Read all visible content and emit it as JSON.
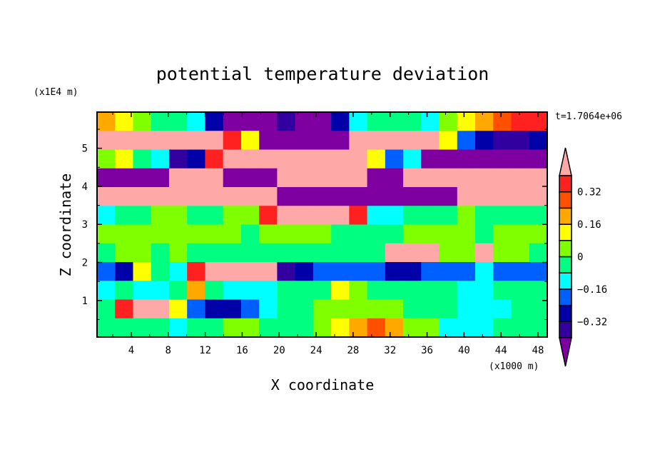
{
  "chart_data": {
    "type": "heatmap",
    "title": "potential temperature deviation",
    "xlabel": "X coordinate",
    "ylabel": "Z coordinate",
    "x_units": "(x1000 m)",
    "y_units": "(x1E4 m)",
    "time_label": "t=1.7064e+06",
    "xlim": [
      0.3,
      49.0
    ],
    "ylim": [
      0.04,
      5.95
    ],
    "x_ticks": [
      4,
      8,
      12,
      16,
      20,
      24,
      28,
      32,
      36,
      40,
      44,
      48
    ],
    "y_ticks": [
      1,
      2,
      3,
      4,
      5
    ],
    "contour_levels": [
      -0.4,
      -0.32,
      -0.24,
      -0.16,
      -0.08,
      0,
      0.08,
      0.16,
      0.24,
      0.32,
      0.4
    ],
    "colorbar_labels": [
      {
        "value": 0.32,
        "text": "0.32"
      },
      {
        "value": 0.16,
        "text": "0.16"
      },
      {
        "value": 0,
        "text": "0"
      },
      {
        "value": -0.16,
        "text": "−0.16"
      },
      {
        "value": -0.32,
        "text": "−0.32"
      }
    ],
    "colors": {
      "under": "#7e00a0",
      "bands": [
        "#3300a0",
        "#0000a8",
        "#0060ff",
        "#00ffff",
        "#00ff80",
        "#80ff00",
        "#ffff00",
        "#ffa800",
        "#ff5000",
        "#ff2020"
      ],
      "over": "#ffa8a8"
    },
    "grid_note_rows_top_to_bottom": "coarse 25 x 12 approximation of the field",
    "values": [
      [
        0.2,
        0.12,
        0.04,
        -0.04,
        -0.04,
        -0.12,
        -0.28,
        -0.5,
        -0.5,
        -0.5,
        -0.36,
        -0.5,
        -0.5,
        -0.28,
        -0.12,
        -0.04,
        -0.04,
        -0.04,
        -0.12,
        0.04,
        0.12,
        0.2,
        0.28,
        0.36,
        0.36
      ],
      [
        0.5,
        0.5,
        0.5,
        0.5,
        0.5,
        0.5,
        0.5,
        0.36,
        0.12,
        -0.5,
        -0.5,
        -0.5,
        -0.5,
        -0.5,
        0.5,
        0.5,
        0.5,
        0.5,
        0.5,
        0.12,
        -0.2,
        -0.28,
        -0.36,
        -0.36,
        -0.28
      ],
      [
        0.04,
        0.12,
        -0.04,
        -0.12,
        -0.36,
        -0.28,
        0.36,
        0.5,
        0.5,
        0.5,
        0.5,
        0.5,
        0.5,
        0.5,
        0.5,
        0.12,
        -0.2,
        -0.12,
        -0.5,
        -0.5,
        -0.5,
        -0.5,
        -0.5,
        -0.5,
        -0.5
      ],
      [
        -0.5,
        -0.5,
        -0.5,
        -0.5,
        0.5,
        0.5,
        0.5,
        -0.5,
        -0.5,
        -0.5,
        0.5,
        0.5,
        0.5,
        0.5,
        0.5,
        -0.5,
        -0.5,
        0.5,
        0.5,
        0.5,
        0.5,
        0.5,
        0.5,
        0.5,
        0.5
      ],
      [
        0.5,
        0.5,
        0.5,
        0.5,
        0.5,
        0.5,
        0.5,
        0.5,
        0.5,
        0.5,
        -0.5,
        -0.5,
        -0.5,
        -0.5,
        -0.5,
        -0.5,
        -0.5,
        -0.5,
        -0.5,
        -0.5,
        0.5,
        0.5,
        0.5,
        0.5,
        0.5
      ],
      [
        -0.12,
        -0.04,
        -0.04,
        0.04,
        0.04,
        -0.04,
        -0.04,
        0.04,
        0.04,
        0.36,
        0.5,
        0.5,
        0.5,
        0.5,
        0.36,
        -0.12,
        -0.12,
        -0.04,
        -0.04,
        -0.04,
        0.04,
        -0.04,
        -0.04,
        -0.04,
        -0.04
      ],
      [
        0.04,
        0.04,
        0.04,
        0.04,
        0.04,
        0.04,
        0.04,
        0.04,
        -0.04,
        0.04,
        0.04,
        0.04,
        0.04,
        -0.04,
        -0.04,
        -0.04,
        -0.04,
        0.04,
        0.04,
        0.04,
        0.04,
        -0.04,
        0.04,
        0.04,
        0.04
      ],
      [
        -0.04,
        0.04,
        0.04,
        -0.04,
        0.04,
        -0.04,
        -0.04,
        -0.04,
        -0.04,
        -0.04,
        -0.04,
        -0.04,
        -0.04,
        -0.04,
        -0.04,
        -0.04,
        0.5,
        0.5,
        0.5,
        0.04,
        0.04,
        0.5,
        0.04,
        0.04,
        -0.04
      ],
      [
        -0.2,
        -0.28,
        0.12,
        -0.04,
        -0.12,
        0.36,
        0.5,
        0.5,
        0.5,
        0.5,
        -0.36,
        -0.28,
        -0.2,
        -0.2,
        -0.2,
        -0.2,
        -0.28,
        -0.28,
        -0.2,
        -0.2,
        -0.2,
        -0.12,
        -0.2,
        -0.2,
        -0.2
      ],
      [
        -0.12,
        -0.04,
        -0.12,
        -0.12,
        -0.04,
        0.2,
        -0.04,
        -0.12,
        -0.12,
        -0.12,
        -0.04,
        -0.04,
        -0.04,
        0.12,
        0.04,
        -0.04,
        -0.04,
        -0.04,
        -0.04,
        -0.04,
        -0.12,
        -0.12,
        -0.04,
        -0.04,
        -0.04
      ],
      [
        -0.04,
        0.36,
        0.5,
        0.5,
        0.12,
        -0.2,
        -0.28,
        -0.28,
        -0.2,
        -0.12,
        -0.04,
        -0.04,
        0.04,
        0.04,
        0.04,
        0.04,
        0.04,
        -0.04,
        -0.04,
        -0.04,
        -0.12,
        -0.12,
        -0.12,
        -0.04,
        -0.04
      ],
      [
        -0.04,
        -0.04,
        -0.04,
        -0.04,
        -0.12,
        -0.04,
        -0.04,
        0.04,
        0.04,
        -0.04,
        -0.04,
        -0.04,
        0.04,
        0.12,
        0.2,
        0.28,
        0.2,
        0.04,
        0.04,
        -0.12,
        -0.12,
        -0.12,
        -0.04,
        -0.04,
        -0.04
      ]
    ]
  }
}
